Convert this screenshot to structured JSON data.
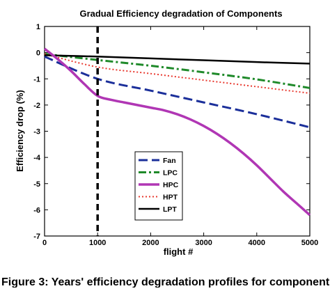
{
  "chart_data": {
    "type": "line",
    "title": "Gradual Efficiency degradation of Components",
    "xlabel": "flight #",
    "ylabel": "Efficiency drop (%)",
    "xlim": [
      0,
      5000
    ],
    "ylim": [
      -7,
      1
    ],
    "xticks": [
      "0",
      "1000",
      "2000",
      "3000",
      "4000",
      "5000"
    ],
    "yticks": [
      "1",
      "0",
      "-1",
      "-2",
      "-3",
      "-4",
      "-5",
      "-6",
      "-7"
    ],
    "grid": false,
    "legend_position": "lower-left",
    "series": [
      {
        "name": "Fan",
        "color": "#1b2f9a",
        "dash": "long-dash",
        "x": [
          0,
          1000,
          2000,
          3000,
          4000,
          5000
        ],
        "y": [
          -0.15,
          -1.0,
          -1.45,
          -1.9,
          -2.35,
          -2.85
        ]
      },
      {
        "name": "LPC",
        "color": "#1f8a2a",
        "dash": "dash-dot",
        "x": [
          0,
          1000,
          2000,
          3000,
          4000,
          5000
        ],
        "y": [
          -0.05,
          -0.28,
          -0.5,
          -0.75,
          -1.02,
          -1.35
        ]
      },
      {
        "name": "HPC",
        "color": "#b036b4",
        "dash": "solid",
        "x": [
          0,
          250,
          500,
          750,
          1000,
          1250,
          1500,
          1750,
          2000,
          2250,
          2500,
          2750,
          3000,
          3250,
          3500,
          3750,
          4000,
          4250,
          4500,
          4750,
          5000
        ],
        "y": [
          0.15,
          -0.25,
          -0.7,
          -1.2,
          -1.65,
          -1.8,
          -1.9,
          -2.0,
          -2.1,
          -2.2,
          -2.35,
          -2.55,
          -2.8,
          -3.1,
          -3.45,
          -3.85,
          -4.3,
          -4.8,
          -5.3,
          -5.75,
          -6.2
        ]
      },
      {
        "name": "HPT",
        "color": "#e8382e",
        "dash": "dotted",
        "x": [
          0,
          1000,
          2000,
          3000,
          4000,
          5000
        ],
        "y": [
          -0.05,
          -0.55,
          -0.8,
          -1.05,
          -1.3,
          -1.55
        ]
      },
      {
        "name": "LPT",
        "color": "#000000",
        "dash": "solid",
        "x": [
          0,
          1000,
          2000,
          3000,
          4000,
          5000
        ],
        "y": [
          -0.1,
          -0.15,
          -0.22,
          -0.29,
          -0.36,
          -0.42
        ]
      }
    ],
    "vline": {
      "x": 1000,
      "color": "#000000",
      "dash": "heavy-dash"
    }
  },
  "caption": {
    "visible_text": "Figure 3: Years' efficiency degradation profiles for component"
  }
}
